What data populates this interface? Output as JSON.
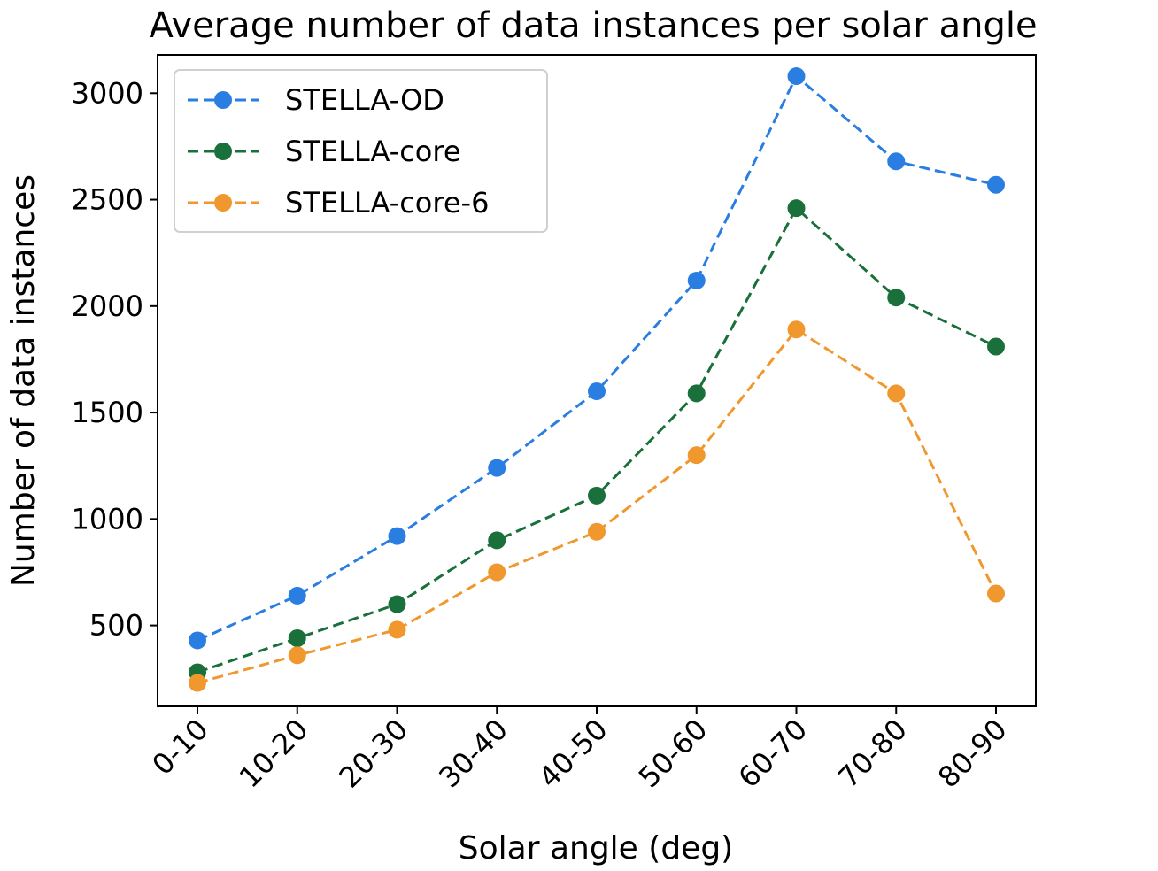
{
  "chart_data": {
    "type": "line",
    "title": "Average number of data instances per solar angle",
    "xlabel": "Solar angle (deg)",
    "ylabel": "Number of data instances",
    "categories": [
      "0-10",
      "10-20",
      "20-30",
      "30-40",
      "40-50",
      "50-60",
      "60-70",
      "70-80",
      "80-90"
    ],
    "ylim": [
      120,
      3180
    ],
    "yticks": [
      500,
      1000,
      1500,
      2000,
      2500,
      3000
    ],
    "legend_position": "top-left",
    "grid": false,
    "series": [
      {
        "name": "STELLA-OD",
        "color": "#2a7de1",
        "values": [
          430,
          640,
          920,
          1240,
          1600,
          2120,
          3080,
          2680,
          2570
        ]
      },
      {
        "name": "STELLA-core",
        "color": "#19703a",
        "values": [
          280,
          440,
          600,
          900,
          1110,
          1590,
          2460,
          2040,
          1810
        ]
      },
      {
        "name": "STELLA-core-6",
        "color": "#f0972e",
        "values": [
          230,
          360,
          480,
          750,
          940,
          1300,
          1890,
          1590,
          650
        ]
      }
    ]
  }
}
